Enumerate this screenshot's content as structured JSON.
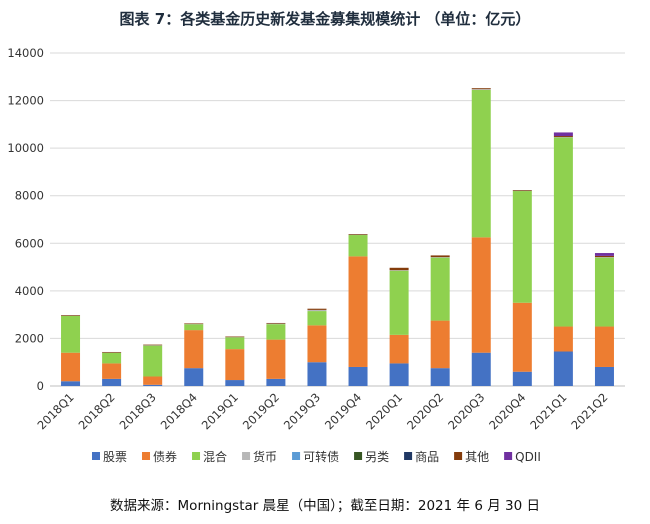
{
  "title": "图表 7：各类基金历史新发基金募集规模统计 （单位：亿元）",
  "source": "数据来源：Morningstar 晨星（中国）；截至日期：2021 年 6 月 30 日",
  "chart_data": {
    "type": "bar",
    "stacked": true,
    "categories": [
      "2018Q1",
      "2018Q2",
      "2018Q3",
      "2018Q4",
      "2019Q1",
      "2019Q2",
      "2019Q3",
      "2019Q4",
      "2020Q1",
      "2020Q2",
      "2020Q3",
      "2020Q4",
      "2021Q1",
      "2021Q2"
    ],
    "ylim": [
      0,
      14000
    ],
    "yticks": [
      0,
      2000,
      4000,
      6000,
      8000,
      10000,
      12000,
      14000
    ],
    "grid": true,
    "legend_position": "bottom",
    "series": [
      {
        "name": "股票",
        "color": "#4472c4",
        "values": [
          200,
          300,
          50,
          750,
          250,
          300,
          1000,
          800,
          950,
          750,
          1400,
          600,
          1450,
          800
        ]
      },
      {
        "name": "债券",
        "color": "#ed7d31",
        "values": [
          1200,
          650,
          350,
          1600,
          1300,
          1650,
          1550,
          4650,
          1200,
          2000,
          4850,
          2900,
          1050,
          1700
        ]
      },
      {
        "name": "混合",
        "color": "#8fd14f",
        "values": [
          1550,
          450,
          1300,
          250,
          500,
          650,
          600,
          900,
          2700,
          2650,
          6200,
          4700,
          7950,
          2900
        ]
      },
      {
        "name": "货币",
        "color": "#b7b7b7",
        "values": [
          20,
          20,
          20,
          20,
          20,
          30,
          50,
          20,
          20,
          20,
          30,
          20,
          20,
          20
        ]
      },
      {
        "name": "可转债",
        "color": "#5b9bd5",
        "values": [
          0,
          0,
          0,
          0,
          0,
          0,
          0,
          0,
          0,
          0,
          0,
          0,
          0,
          0
        ]
      },
      {
        "name": "另类",
        "color": "#375623",
        "values": [
          0,
          0,
          0,
          0,
          0,
          0,
          0,
          0,
          0,
          0,
          0,
          0,
          0,
          0
        ]
      },
      {
        "name": "商品",
        "color": "#203864",
        "values": [
          0,
          0,
          0,
          0,
          0,
          0,
          0,
          0,
          0,
          0,
          0,
          0,
          0,
          0
        ]
      },
      {
        "name": "其他",
        "color": "#843c0c",
        "values": [
          10,
          10,
          20,
          10,
          10,
          20,
          50,
          20,
          100,
          70,
          40,
          20,
          40,
          50
        ]
      },
      {
        "name": "QDII",
        "color": "#7030a0",
        "values": [
          0,
          0,
          0,
          0,
          0,
          0,
          0,
          0,
          0,
          0,
          0,
          0,
          150,
          120
        ]
      }
    ]
  }
}
